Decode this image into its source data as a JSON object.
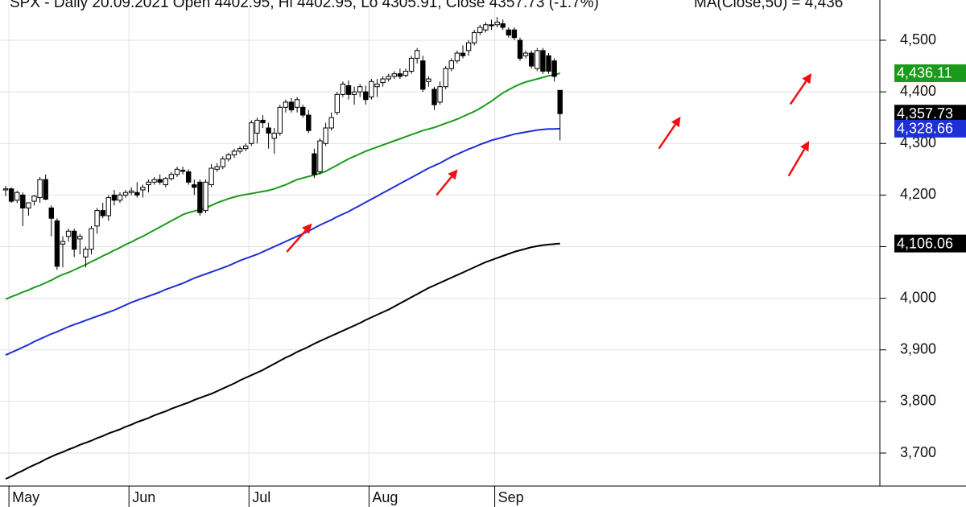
{
  "header": {
    "title": "SPX - Daily 20.09.2021 Open 4402.95, Hi 4402.95, Lo 4305.91, Close 4357.73 (-1.7%)",
    "ma_label": "MA(Close,50) = 4,436"
  },
  "colors": {
    "up_candle": "#ffffff",
    "down_candle": "#000000",
    "ma50": "#1a9a1a",
    "ma100": "#1f2fd6",
    "ma200": "#000000",
    "arrow": "#ee1111",
    "grid": "#e2e2e2"
  },
  "chart_data": {
    "type": "candlestick",
    "title": "SPX - Daily 20.09.2021 Open 4402.95, Hi 4402.95, Lo 4305.91, Close 4357.73 (-1.7%)",
    "xlabel": "",
    "ylabel": "",
    "ylim": [
      3640,
      4560
    ],
    "y_ticks": [
      3700,
      3800,
      3900,
      4000,
      4100,
      4200,
      4300,
      4400,
      4500
    ],
    "y_tick_labels": [
      "3,700",
      "3,800",
      "3,900",
      "4,000",
      "4,100",
      "4,200",
      "4,300",
      "4,400",
      "4,500"
    ],
    "months": [
      {
        "label": "May",
        "index": 1
      },
      {
        "label": "Jun",
        "index": 22
      },
      {
        "label": "Jul",
        "index": 43
      },
      {
        "label": "Aug",
        "index": 64
      },
      {
        "label": "Sep",
        "index": 86
      }
    ],
    "grid": true,
    "value_tags": [
      {
        "label": "4,436.11",
        "value": 4436.11,
        "color": "#1a9a1a"
      },
      {
        "label": "4,357.73",
        "value": 4357.73,
        "color": "#000000"
      },
      {
        "label": "4,328.66",
        "value": 4328.66,
        "color": "#1f2fd6"
      },
      {
        "label": "4,106.06",
        "value": 4106.06,
        "color": "#000000"
      }
    ],
    "candles": [
      [
        4210,
        4218,
        4198,
        4212
      ],
      [
        4212,
        4215,
        4185,
        4188
      ],
      [
        4190,
        4208,
        4185,
        4205
      ],
      [
        4200,
        4205,
        4140,
        4175
      ],
      [
        4175,
        4185,
        4160,
        4185
      ],
      [
        4188,
        4200,
        4180,
        4198
      ],
      [
        4195,
        4235,
        4185,
        4230
      ],
      [
        4230,
        4240,
        4190,
        4192
      ],
      [
        4175,
        4180,
        4120,
        4155
      ],
      [
        4150,
        4155,
        4055,
        4062
      ],
      [
        4105,
        4120,
        4060,
        4110
      ],
      [
        4120,
        4135,
        4110,
        4130
      ],
      [
        4130,
        4135,
        4080,
        4095
      ],
      [
        4115,
        4125,
        4085,
        4120
      ],
      [
        4080,
        4100,
        4060,
        4095
      ],
      [
        4095,
        4140,
        4085,
        4135
      ],
      [
        4140,
        4175,
        4125,
        4170
      ],
      [
        4170,
        4185,
        4155,
        4160
      ],
      [
        4160,
        4200,
        4150,
        4195
      ],
      [
        4200,
        4210,
        4180,
        4190
      ],
      [
        4190,
        4205,
        4185,
        4200
      ],
      [
        4200,
        4210,
        4195,
        4205
      ],
      [
        4205,
        4215,
        4200,
        4208
      ],
      [
        4205,
        4225,
        4195,
        4200
      ],
      [
        4210,
        4220,
        4195,
        4215
      ],
      [
        4220,
        4230,
        4205,
        4225
      ],
      [
        4225,
        4235,
        4220,
        4230
      ],
      [
        4230,
        4240,
        4220,
        4225
      ],
      [
        4220,
        4235,
        4215,
        4232
      ],
      [
        4232,
        4245,
        4228,
        4240
      ],
      [
        4240,
        4255,
        4235,
        4250
      ],
      [
        4248,
        4255,
        4240,
        4246
      ],
      [
        4245,
        4250,
        4220,
        4225
      ],
      [
        4220,
        4230,
        4200,
        4215
      ],
      [
        4225,
        4230,
        4160,
        4166
      ],
      [
        4170,
        4230,
        4165,
        4225
      ],
      [
        4220,
        4260,
        4215,
        4252
      ],
      [
        4250,
        4262,
        4245,
        4255
      ],
      [
        4255,
        4275,
        4250,
        4270
      ],
      [
        4270,
        4282,
        4265,
        4278
      ],
      [
        4278,
        4290,
        4272,
        4285
      ],
      [
        4285,
        4295,
        4280,
        4290
      ],
      [
        4290,
        4300,
        4285,
        4295
      ],
      [
        4300,
        4345,
        4295,
        4340
      ],
      [
        4320,
        4350,
        4300,
        4345
      ],
      [
        4345,
        4355,
        4330,
        4340
      ],
      [
        4330,
        4340,
        4290,
        4320
      ],
      [
        4310,
        4330,
        4280,
        4320
      ],
      [
        4320,
        4375,
        4315,
        4370
      ],
      [
        4370,
        4385,
        4360,
        4380
      ],
      [
        4380,
        4388,
        4360,
        4365
      ],
      [
        4370,
        4390,
        4360,
        4385
      ],
      [
        4370,
        4375,
        4350,
        4355
      ],
      [
        4355,
        4365,
        4320,
        4325
      ],
      [
        4280,
        4290,
        4233,
        4240
      ],
      [
        4245,
        4310,
        4240,
        4305
      ],
      [
        4300,
        4340,
        4295,
        4330
      ],
      [
        4330,
        4360,
        4325,
        4350
      ],
      [
        4360,
        4400,
        4355,
        4395
      ],
      [
        4395,
        4420,
        4390,
        4415
      ],
      [
        4412,
        4422,
        4385,
        4395
      ],
      [
        4395,
        4410,
        4375,
        4400
      ],
      [
        4400,
        4415,
        4390,
        4410
      ],
      [
        4400,
        4412,
        4375,
        4385
      ],
      [
        4390,
        4425,
        4385,
        4420
      ],
      [
        4410,
        4425,
        4390,
        4415
      ],
      [
        4418,
        4430,
        4410,
        4425
      ],
      [
        4425,
        4435,
        4420,
        4430
      ],
      [
        4430,
        4440,
        4425,
        4435
      ],
      [
        4435,
        4445,
        4425,
        4430
      ],
      [
        4432,
        4445,
        4428,
        4440
      ],
      [
        4440,
        4470,
        4435,
        4465
      ],
      [
        4465,
        4485,
        4455,
        4480
      ],
      [
        4460,
        4470,
        4400,
        4405
      ],
      [
        4420,
        4430,
        4410,
        4425
      ],
      [
        4405,
        4410,
        4365,
        4375
      ],
      [
        4380,
        4420,
        4375,
        4410
      ],
      [
        4410,
        4450,
        4405,
        4445
      ],
      [
        4445,
        4465,
        4440,
        4460
      ],
      [
        4460,
        4480,
        4455,
        4475
      ],
      [
        4475,
        4490,
        4465,
        4470
      ],
      [
        4480,
        4500,
        4470,
        4495
      ],
      [
        4495,
        4520,
        4490,
        4515
      ],
      [
        4515,
        4530,
        4510,
        4525
      ],
      [
        4520,
        4535,
        4515,
        4530
      ],
      [
        4530,
        4540,
        4520,
        4528
      ],
      [
        4530,
        4545,
        4525,
        4535
      ],
      [
        4532,
        4540,
        4520,
        4525
      ],
      [
        4520,
        4525,
        4505,
        4510
      ],
      [
        4520,
        4525,
        4500,
        4505
      ],
      [
        4500,
        4505,
        4460,
        4465
      ],
      [
        4470,
        4480,
        4465,
        4475
      ],
      [
        4475,
        4480,
        4445,
        4450
      ],
      [
        4445,
        4485,
        4440,
        4480
      ],
      [
        4480,
        4485,
        4435,
        4440
      ],
      [
        4470,
        4475,
        4435,
        4440
      ],
      [
        4460,
        4465,
        4420,
        4430
      ],
      [
        4402.95,
        4402.95,
        4305.91,
        4357.73
      ]
    ],
    "series": [
      {
        "type": "line",
        "color": "#1a9a1a",
        "values": [
          3998,
          4003,
          4007,
          4012,
          4016,
          4021,
          4025,
          4030,
          4035,
          4041,
          4046,
          4050,
          4055,
          4060,
          4065,
          4071,
          4076,
          4082,
          4087,
          4093,
          4098,
          4104,
          4109,
          4115,
          4120,
          4126,
          4132,
          4138,
          4144,
          4150,
          4156,
          4162,
          4166,
          4169,
          4172,
          4175,
          4180,
          4185,
          4189,
          4193,
          4196,
          4199,
          4201,
          4203,
          4205,
          4207,
          4209,
          4212,
          4216,
          4220,
          4225,
          4230,
          4233,
          4236,
          4239,
          4242,
          4246,
          4252,
          4258,
          4264,
          4270,
          4275,
          4280,
          4285,
          4289,
          4293,
          4297,
          4301,
          4305,
          4309,
          4313,
          4317,
          4321,
          4325,
          4328,
          4331,
          4335,
          4339,
          4343,
          4347,
          4352,
          4357,
          4362,
          4368,
          4375,
          4382,
          4390,
          4398,
          4404,
          4410,
          4415,
          4419,
          4422,
          4425,
          4428,
          4431,
          4433,
          4436.11
        ]
      },
      {
        "type": "line",
        "color": "#1f2fd6",
        "values": [
          3890,
          3895,
          3900,
          3905,
          3910,
          3916,
          3921,
          3926,
          3931,
          3935,
          3940,
          3945,
          3949,
          3953,
          3957,
          3961,
          3965,
          3969,
          3973,
          3977,
          3982,
          3987,
          3992,
          3996,
          4000,
          4004,
          4008,
          4012,
          4017,
          4021,
          4025,
          4029,
          4034,
          4039,
          4043,
          4047,
          4051,
          4055,
          4059,
          4063,
          4068,
          4073,
          4077,
          4081,
          4085,
          4090,
          4095,
          4100,
          4105,
          4110,
          4115,
          4120,
          4125,
          4130,
          4136,
          4142,
          4147,
          4152,
          4158,
          4163,
          4168,
          4174,
          4180,
          4186,
          4192,
          4198,
          4204,
          4210,
          4216,
          4222,
          4228,
          4234,
          4240,
          4246,
          4252,
          4257,
          4262,
          4268,
          4274,
          4279,
          4284,
          4289,
          4293,
          4298,
          4302,
          4306,
          4309,
          4312,
          4315,
          4318,
          4320,
          4322,
          4324,
          4326,
          4327,
          4328,
          4328,
          4328.66
        ]
      },
      {
        "type": "line",
        "color": "#000000",
        "values": [
          3650,
          3655,
          3661,
          3666,
          3672,
          3677,
          3682,
          3688,
          3693,
          3698,
          3702,
          3707,
          3711,
          3716,
          3720,
          3724,
          3729,
          3733,
          3738,
          3742,
          3746,
          3751,
          3755,
          3760,
          3764,
          3768,
          3773,
          3777,
          3781,
          3786,
          3790,
          3794,
          3798,
          3803,
          3807,
          3811,
          3815,
          3820,
          3825,
          3830,
          3835,
          3841,
          3846,
          3851,
          3856,
          3861,
          3867,
          3873,
          3879,
          3885,
          3890,
          3896,
          3901,
          3906,
          3912,
          3917,
          3922,
          3927,
          3932,
          3937,
          3942,
          3947,
          3952,
          3958,
          3963,
          3968,
          3973,
          3978,
          3984,
          3990,
          3996,
          4002,
          4008,
          4014,
          4020,
          4025,
          4030,
          4035,
          4040,
          4045,
          4050,
          4055,
          4060,
          4065,
          4070,
          4074,
          4078,
          4082,
          4086,
          4090,
          4093,
          4096,
          4099,
          4101,
          4103,
          4104,
          4105,
          4106.06
        ]
      }
    ],
    "annotations": [
      {
        "type": "arrow",
        "color": "#ee1111",
        "from": [
          49.2,
          4090
        ],
        "to": [
          53.6,
          4145
        ]
      },
      {
        "type": "arrow",
        "color": "#ee1111",
        "from": [
          75.4,
          4200
        ],
        "to": [
          79.1,
          4250
        ]
      },
      {
        "type": "arrow",
        "color": "#ee1111",
        "from": [
          114.3,
          4290
        ],
        "to": [
          118.1,
          4352
        ]
      },
      {
        "type": "arrow",
        "color": "#ee1111",
        "from": [
          137.3,
          4376
        ],
        "to": [
          141.0,
          4436
        ]
      },
      {
        "type": "arrow",
        "color": "#ee1111",
        "from": [
          137.0,
          4237
        ],
        "to": [
          140.6,
          4305
        ]
      }
    ]
  }
}
